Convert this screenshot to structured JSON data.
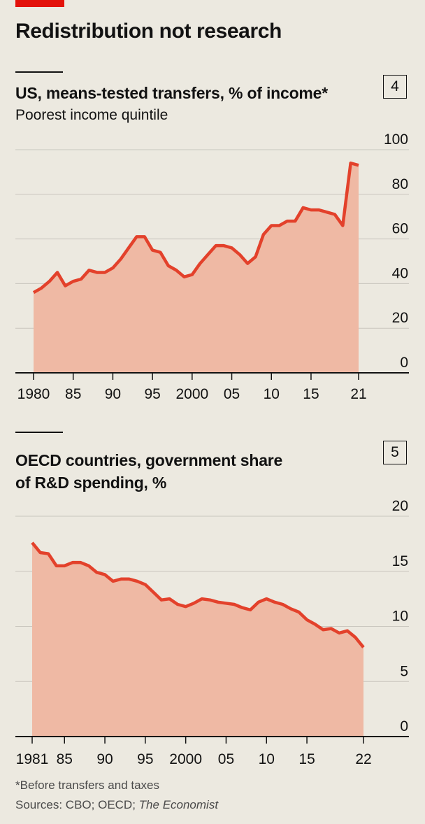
{
  "title": "Redistribution not research",
  "footnote": "*Before transfers and taxes",
  "source": {
    "prefix": "Sources: CBO; OECD; ",
    "italic": "The Economist"
  },
  "colors": {
    "line": "#e3412b",
    "area": "#efb9a4",
    "grid": "#c9c6be",
    "accent": "#e3120b",
    "background": "#ece9e0"
  },
  "chart_data": [
    {
      "type": "area",
      "number": "4",
      "title": "US, means-tested transfers, % of income*",
      "subtitle": "Poorest income quintile",
      "ylim": [
        0,
        100
      ],
      "yticks": [
        "0",
        "20",
        "40",
        "60",
        "80",
        "100"
      ],
      "xtick_labels": [
        "1980",
        "85",
        "90",
        "95",
        "2000",
        "05",
        "10",
        "15",
        "21"
      ],
      "xtick_values": [
        1980,
        1985,
        1990,
        1995,
        2000,
        2005,
        2010,
        2015,
        2021
      ],
      "x": [
        1980,
        1981,
        1982,
        1983,
        1984,
        1985,
        1986,
        1987,
        1988,
        1989,
        1990,
        1991,
        1992,
        1993,
        1994,
        1995,
        1996,
        1997,
        1998,
        1999,
        2000,
        2001,
        2002,
        2003,
        2004,
        2005,
        2006,
        2007,
        2008,
        2009,
        2010,
        2011,
        2012,
        2013,
        2014,
        2015,
        2016,
        2017,
        2018,
        2019,
        2020,
        2021
      ],
      "values": [
        36,
        38,
        41,
        45,
        39,
        41,
        42,
        46,
        45,
        45,
        47,
        51,
        56,
        61,
        61,
        55,
        54,
        48,
        46,
        43,
        44,
        49,
        53,
        57,
        57,
        56,
        53,
        49,
        52,
        62,
        66,
        66,
        68,
        68,
        74,
        73,
        73,
        72,
        71,
        66,
        94,
        93
      ],
      "grid": true
    },
    {
      "type": "area",
      "number": "5",
      "title": "OECD countries, government share",
      "title_line2": "of R&D spending, %",
      "ylim": [
        0,
        20
      ],
      "yticks": [
        "0",
        "5",
        "10",
        "15",
        "20"
      ],
      "xtick_labels": [
        "1981",
        "85",
        "90",
        "95",
        "2000",
        "05",
        "10",
        "15",
        "22"
      ],
      "xtick_values": [
        1981,
        1985,
        1990,
        1995,
        2000,
        2005,
        2010,
        2015,
        2022
      ],
      "x": [
        1981,
        1982,
        1983,
        1984,
        1985,
        1986,
        1987,
        1988,
        1989,
        1990,
        1991,
        1992,
        1993,
        1994,
        1995,
        1996,
        1997,
        1998,
        1999,
        2000,
        2001,
        2002,
        2003,
        2004,
        2005,
        2006,
        2007,
        2008,
        2009,
        2010,
        2011,
        2012,
        2013,
        2014,
        2015,
        2016,
        2017,
        2018,
        2019,
        2020,
        2021,
        2022
      ],
      "values": [
        17.6,
        16.7,
        16.6,
        15.5,
        15.5,
        15.8,
        15.8,
        15.5,
        14.9,
        14.7,
        14.1,
        14.3,
        14.3,
        14.1,
        13.8,
        13.1,
        12.4,
        12.5,
        12.0,
        11.8,
        12.1,
        12.5,
        12.4,
        12.2,
        12.1,
        12.0,
        11.7,
        11.5,
        12.2,
        12.5,
        12.2,
        12.0,
        11.6,
        11.3,
        10.6,
        10.2,
        9.7,
        9.8,
        9.4,
        9.6,
        9.0,
        8.1
      ],
      "grid": true
    }
  ]
}
